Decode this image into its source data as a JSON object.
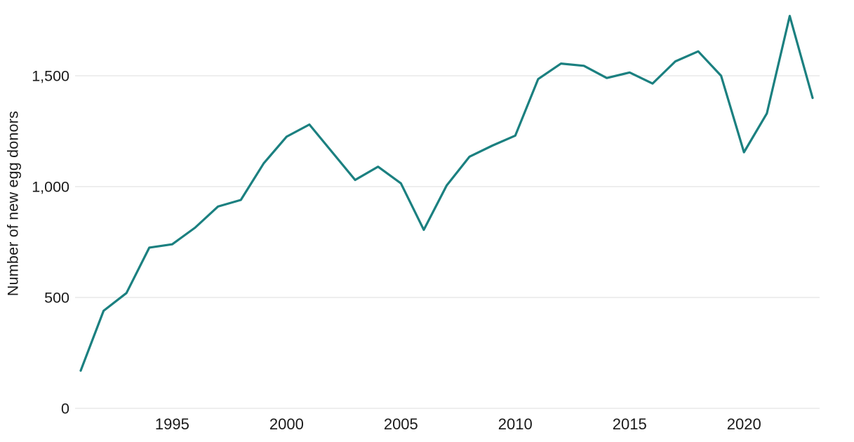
{
  "chart_data": {
    "type": "line",
    "title": "",
    "xlabel": "",
    "ylabel": "Number of new egg donors",
    "x_range": [
      1991,
      2023
    ],
    "ylim": [
      0,
      1800
    ],
    "grid": "horizontal-only",
    "legend": "none",
    "x": [
      1991,
      1992,
      1993,
      1994,
      1995,
      1996,
      1997,
      1998,
      1999,
      2000,
      2001,
      2002,
      2003,
      2004,
      2005,
      2006,
      2007,
      2008,
      2009,
      2010,
      2011,
      2012,
      2013,
      2014,
      2015,
      2016,
      2017,
      2018,
      2019,
      2020,
      2021,
      2022,
      2023
    ],
    "values": [
      170,
      440,
      520,
      725,
      740,
      815,
      910,
      940,
      1105,
      1225,
      1280,
      1155,
      1030,
      1090,
      1015,
      805,
      1005,
      1135,
      1185,
      1230,
      1485,
      1555,
      1545,
      1490,
      1515,
      1465,
      1565,
      1610,
      1500,
      1155,
      1330,
      1770,
      1400
    ],
    "yticks": {
      "values": [
        0,
        500,
        1000,
        1500
      ],
      "labels": [
        "0",
        "500",
        "1,000",
        "1,500"
      ]
    },
    "xticks": {
      "values": [
        1995,
        2000,
        2005,
        2010,
        2015,
        2020
      ],
      "labels": [
        "1995",
        "2000",
        "2005",
        "2010",
        "2015",
        "2020"
      ]
    },
    "colors": {
      "line": "#1b8080",
      "grid": "#e8e8e8",
      "text": "#1a1a1a",
      "background": "#ffffff"
    }
  }
}
